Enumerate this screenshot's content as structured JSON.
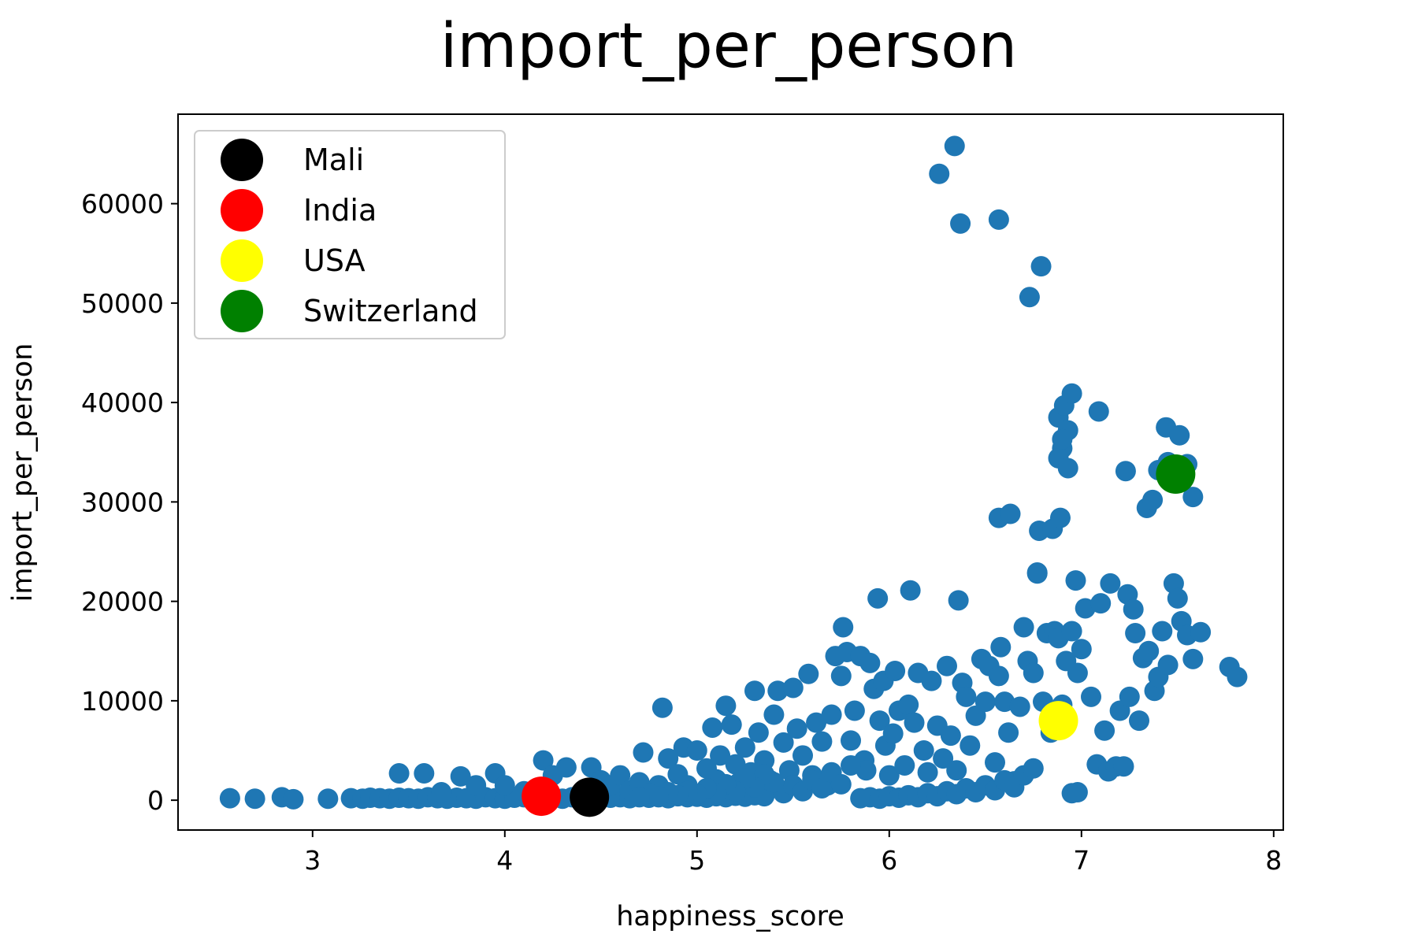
{
  "chart_data": {
    "type": "scatter",
    "title": "import_per_person",
    "xlabel": "happiness_score",
    "ylabel": "import_per_person",
    "xlim": [
      2.3,
      8.05
    ],
    "ylim": [
      -3000,
      69000
    ],
    "xticks": [
      3,
      4,
      5,
      6,
      7,
      8
    ],
    "yticks": [
      0,
      10000,
      20000,
      30000,
      40000,
      50000,
      60000
    ],
    "grid": false,
    "legend_position": "top-left",
    "point_color": "#1f77b4",
    "series": [
      {
        "name": "",
        "color": "#1f77b4",
        "points": [
          [
            2.57,
            200
          ],
          [
            2.7,
            150
          ],
          [
            2.84,
            300
          ],
          [
            2.9,
            100
          ],
          [
            3.08,
            150
          ],
          [
            3.2,
            200
          ],
          [
            3.26,
            150
          ],
          [
            3.3,
            250
          ],
          [
            3.35,
            200
          ],
          [
            3.4,
            150
          ],
          [
            3.45,
            250
          ],
          [
            3.5,
            200
          ],
          [
            3.55,
            150
          ],
          [
            3.6,
            300
          ],
          [
            3.65,
            200
          ],
          [
            3.7,
            150
          ],
          [
            3.75,
            250
          ],
          [
            3.8,
            200
          ],
          [
            3.85,
            150
          ],
          [
            3.9,
            300
          ],
          [
            3.95,
            200
          ],
          [
            4.0,
            150
          ],
          [
            4.05,
            250
          ],
          [
            4.1,
            300
          ],
          [
            4.15,
            200
          ],
          [
            4.25,
            250
          ],
          [
            4.3,
            150
          ],
          [
            4.35,
            300
          ],
          [
            4.5,
            200
          ],
          [
            4.55,
            250
          ],
          [
            4.6,
            300
          ],
          [
            4.65,
            200
          ],
          [
            4.7,
            350
          ],
          [
            4.75,
            250
          ],
          [
            4.8,
            300
          ],
          [
            4.85,
            200
          ],
          [
            4.9,
            400
          ],
          [
            4.95,
            300
          ],
          [
            5.0,
            350
          ],
          [
            5.05,
            250
          ],
          [
            5.1,
            400
          ],
          [
            5.15,
            300
          ],
          [
            5.2,
            450
          ],
          [
            5.25,
            350
          ],
          [
            5.3,
            500
          ],
          [
            5.35,
            400
          ],
          [
            3.45,
            2700
          ],
          [
            3.58,
            2700
          ],
          [
            3.67,
            800
          ],
          [
            3.77,
            2400
          ],
          [
            3.85,
            1500
          ],
          [
            3.95,
            2700
          ],
          [
            4.0,
            1500
          ],
          [
            4.1,
            900
          ],
          [
            4.2,
            4000
          ],
          [
            4.25,
            2500
          ],
          [
            4.32,
            3300
          ],
          [
            4.45,
            3300
          ],
          [
            4.5,
            2000
          ],
          [
            4.55,
            1500
          ],
          [
            4.6,
            2500
          ],
          [
            4.65,
            1000
          ],
          [
            4.7,
            1800
          ],
          [
            4.72,
            4800
          ],
          [
            4.8,
            1500
          ],
          [
            4.82,
            9300
          ],
          [
            4.85,
            4200
          ],
          [
            4.9,
            2600
          ],
          [
            4.93,
            5300
          ],
          [
            4.95,
            1500
          ],
          [
            5.0,
            5000
          ],
          [
            5.05,
            3200
          ],
          [
            5.08,
            7300
          ],
          [
            5.1,
            2100
          ],
          [
            5.12,
            4500
          ],
          [
            5.15,
            9500
          ],
          [
            5.18,
            7600
          ],
          [
            5.2,
            3600
          ],
          [
            5.22,
            1800
          ],
          [
            5.25,
            5300
          ],
          [
            5.28,
            2800
          ],
          [
            5.3,
            11000
          ],
          [
            5.32,
            6800
          ],
          [
            5.35,
            4000
          ],
          [
            5.38,
            2000
          ],
          [
            5.4,
            8600
          ],
          [
            5.42,
            11000
          ],
          [
            5.45,
            5800
          ],
          [
            5.48,
            3000
          ],
          [
            5.5,
            11300
          ],
          [
            5.52,
            7200
          ],
          [
            5.55,
            4500
          ],
          [
            5.58,
            12700
          ],
          [
            5.6,
            2500
          ],
          [
            5.62,
            7800
          ],
          [
            5.65,
            5900
          ],
          [
            5.68,
            1500
          ],
          [
            5.7,
            8600
          ],
          [
            5.72,
            14500
          ],
          [
            5.75,
            12500
          ],
          [
            5.76,
            17400
          ],
          [
            5.78,
            14900
          ],
          [
            5.8,
            6000
          ],
          [
            5.82,
            9000
          ],
          [
            5.85,
            14500
          ],
          [
            5.87,
            4000
          ],
          [
            5.88,
            3000
          ],
          [
            5.9,
            13800
          ],
          [
            5.92,
            11200
          ],
          [
            5.94,
            20300
          ],
          [
            5.95,
            8000
          ],
          [
            5.97,
            12000
          ],
          [
            5.98,
            5500
          ],
          [
            6.0,
            2500
          ],
          [
            6.02,
            6700
          ],
          [
            6.03,
            13000
          ],
          [
            6.05,
            9000
          ],
          [
            6.08,
            3500
          ],
          [
            6.1,
            9600
          ],
          [
            6.11,
            21100
          ],
          [
            6.13,
            7800
          ],
          [
            6.15,
            12800
          ],
          [
            6.18,
            5000
          ],
          [
            6.2,
            2800
          ],
          [
            6.22,
            12000
          ],
          [
            6.25,
            7500
          ],
          [
            6.28,
            4200
          ],
          [
            6.3,
            13500
          ],
          [
            6.32,
            6500
          ],
          [
            6.35,
            3000
          ],
          [
            6.36,
            20100
          ],
          [
            6.38,
            11800
          ],
          [
            6.4,
            10400
          ],
          [
            6.42,
            5500
          ],
          [
            6.45,
            8500
          ],
          [
            6.48,
            14200
          ],
          [
            6.5,
            9900
          ],
          [
            6.52,
            13500
          ],
          [
            6.55,
            3800
          ],
          [
            6.57,
            12500
          ],
          [
            6.58,
            15400
          ],
          [
            6.6,
            9900
          ],
          [
            6.62,
            6800
          ],
          [
            6.65,
            1900
          ],
          [
            6.68,
            9400
          ],
          [
            6.7,
            17400
          ],
          [
            6.72,
            14000
          ],
          [
            6.75,
            12800
          ],
          [
            6.77,
            22800
          ],
          [
            6.8,
            9900
          ],
          [
            6.82,
            16800
          ],
          [
            6.84,
            6800
          ],
          [
            6.86,
            17000
          ],
          [
            6.88,
            16300
          ],
          [
            6.9,
            9600
          ],
          [
            6.92,
            14000
          ],
          [
            6.95,
            17000
          ],
          [
            6.97,
            22100
          ],
          [
            6.98,
            12800
          ],
          [
            7.0,
            15200
          ],
          [
            7.02,
            19300
          ],
          [
            7.05,
            10400
          ],
          [
            7.08,
            3600
          ],
          [
            7.1,
            19800
          ],
          [
            7.12,
            7000
          ],
          [
            7.14,
            2900
          ],
          [
            7.15,
            21800
          ],
          [
            7.18,
            3400
          ],
          [
            7.2,
            9000
          ],
          [
            7.22,
            3400
          ],
          [
            7.24,
            20700
          ],
          [
            7.25,
            10400
          ],
          [
            7.27,
            19200
          ],
          [
            7.28,
            16800
          ],
          [
            7.3,
            8000
          ],
          [
            7.32,
            14300
          ],
          [
            7.35,
            15000
          ],
          [
            7.38,
            11000
          ],
          [
            7.4,
            12400
          ],
          [
            7.42,
            17000
          ],
          [
            7.45,
            13600
          ],
          [
            7.48,
            21800
          ],
          [
            7.5,
            20300
          ],
          [
            7.52,
            18000
          ],
          [
            7.55,
            16600
          ],
          [
            7.58,
            14200
          ],
          [
            7.62,
            16900
          ],
          [
            7.77,
            13400
          ],
          [
            7.81,
            12400
          ],
          [
            6.26,
            63000
          ],
          [
            6.34,
            65800
          ],
          [
            6.37,
            58000
          ],
          [
            6.57,
            58400
          ],
          [
            6.73,
            50600
          ],
          [
            6.79,
            53700
          ],
          [
            6.77,
            22900
          ],
          [
            6.78,
            27100
          ],
          [
            6.85,
            27300
          ],
          [
            6.89,
            28400
          ],
          [
            6.57,
            28400
          ],
          [
            6.63,
            28800
          ],
          [
            6.88,
            38500
          ],
          [
            6.9,
            35400
          ],
          [
            6.91,
            39700
          ],
          [
            6.93,
            37200
          ],
          [
            6.95,
            40900
          ],
          [
            6.88,
            34400
          ],
          [
            6.93,
            33400
          ],
          [
            6.9,
            36300
          ],
          [
            7.09,
            39100
          ],
          [
            7.23,
            33100
          ],
          [
            7.34,
            29400
          ],
          [
            7.37,
            30200
          ],
          [
            7.44,
            37500
          ],
          [
            7.51,
            36700
          ],
          [
            7.45,
            34000
          ],
          [
            7.4,
            33200
          ],
          [
            7.55,
            33800
          ],
          [
            7.58,
            30500
          ],
          [
            5.85,
            200
          ],
          [
            5.9,
            300
          ],
          [
            5.95,
            150
          ],
          [
            6.0,
            400
          ],
          [
            6.05,
            250
          ],
          [
            6.1,
            500
          ],
          [
            6.15,
            300
          ],
          [
            6.2,
            700
          ],
          [
            6.25,
            400
          ],
          [
            6.3,
            900
          ],
          [
            6.35,
            600
          ],
          [
            6.4,
            1200
          ],
          [
            6.45,
            800
          ],
          [
            6.5,
            1500
          ],
          [
            6.55,
            1000
          ],
          [
            6.6,
            2000
          ],
          [
            6.65,
            1300
          ],
          [
            6.7,
            2500
          ],
          [
            6.75,
            3200
          ],
          [
            6.95,
            700
          ],
          [
            6.98,
            800
          ],
          [
            5.45,
            700
          ],
          [
            5.5,
            1500
          ],
          [
            5.55,
            900
          ],
          [
            5.6,
            2000
          ],
          [
            5.65,
            1200
          ],
          [
            5.7,
            2800
          ],
          [
            5.75,
            1600
          ],
          [
            5.8,
            3500
          ],
          [
            5.4,
            1800
          ],
          [
            5.35,
            2600
          ],
          [
            5.3,
            1300
          ],
          [
            5.25,
            2200
          ],
          [
            5.2,
            900
          ],
          [
            5.15,
            1600
          ],
          [
            5.1,
            700
          ],
          [
            5.05,
            1200
          ],
          [
            5.0,
            600
          ],
          [
            4.95,
            900
          ],
          [
            4.9,
            500
          ],
          [
            4.85,
            800
          ],
          [
            4.8,
            400
          ],
          [
            4.75,
            700
          ],
          [
            4.7,
            300
          ]
        ]
      }
    ],
    "highlights": [
      {
        "name": "Mali",
        "color": "#000000",
        "x": 4.44,
        "y": 300
      },
      {
        "name": "India",
        "color": "#ff0000",
        "x": 4.19,
        "y": 400
      },
      {
        "name": "USA",
        "color": "#ffff00",
        "x": 6.88,
        "y": 8000
      },
      {
        "name": "Switzerland",
        "color": "#008000",
        "x": 7.49,
        "y": 32800
      }
    ],
    "legend": [
      {
        "label": "Mali",
        "color": "#000000"
      },
      {
        "label": "India",
        "color": "#ff0000"
      },
      {
        "label": "USA",
        "color": "#ffff00"
      },
      {
        "label": "Switzerland",
        "color": "#008000"
      }
    ]
  }
}
